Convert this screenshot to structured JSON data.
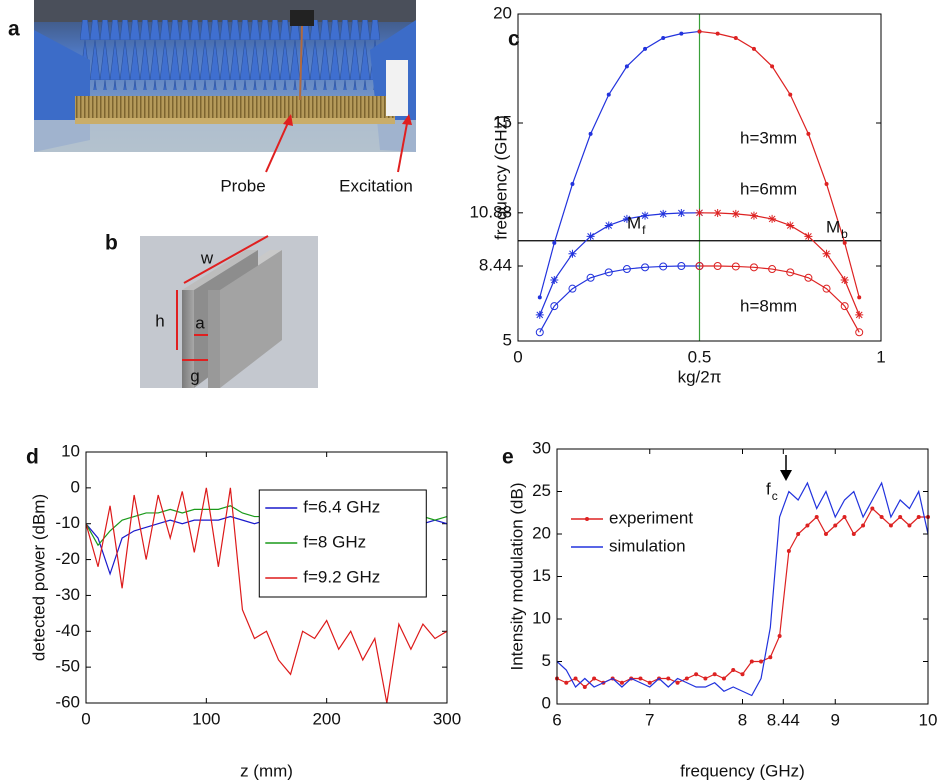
{
  "panels": {
    "a": {
      "label": "a",
      "callouts": [
        "Probe",
        "Excitation"
      ]
    },
    "b": {
      "label": "b",
      "dimensions": [
        "w",
        "h",
        "a",
        "g"
      ]
    }
  },
  "chart_data": [
    {
      "type": "line",
      "panel_label": "c",
      "xlabel": "kg/2π",
      "ylabel": "frequency (GHz)",
      "xlim": [
        0,
        1
      ],
      "ylim": [
        5,
        20
      ],
      "xticks": [
        0,
        0.5,
        1
      ],
      "yticks": [
        5,
        8.44,
        10.88,
        15,
        20
      ],
      "vlines": [
        {
          "value": 0.5,
          "color": "#3aa03a"
        }
      ],
      "hlines": [
        {
          "value": 9.6,
          "color": "#000000"
        }
      ],
      "annotations": [
        {
          "text": "h=3mm"
        },
        {
          "text": "h=6mm"
        },
        {
          "text": "h=8mm"
        },
        {
          "text": "M",
          "sub": "f"
        },
        {
          "text": "M",
          "sub": "b"
        }
      ],
      "series": [
        {
          "color": "#2233dd",
          "marker": "dot",
          "x": [
            0.06,
            0.1,
            0.15,
            0.2,
            0.25,
            0.3,
            0.35,
            0.4,
            0.45,
            0.5
          ],
          "values": [
            7.0,
            9.5,
            12.2,
            14.5,
            16.3,
            17.6,
            18.4,
            18.9,
            19.1,
            19.2
          ]
        },
        {
          "color": "#dd2222",
          "marker": "dot",
          "x": [
            0.5,
            0.55,
            0.6,
            0.65,
            0.7,
            0.75,
            0.8,
            0.85,
            0.9,
            0.94
          ],
          "values": [
            19.2,
            19.1,
            18.9,
            18.4,
            17.6,
            16.3,
            14.5,
            12.2,
            9.5,
            7.0
          ]
        },
        {
          "color": "#2233dd",
          "marker": "asterisk",
          "x": [
            0.06,
            0.1,
            0.15,
            0.2,
            0.25,
            0.3,
            0.35,
            0.4,
            0.45,
            0.5
          ],
          "values": [
            6.2,
            7.8,
            9.0,
            9.8,
            10.3,
            10.6,
            10.75,
            10.83,
            10.87,
            10.88
          ]
        },
        {
          "color": "#dd2222",
          "marker": "asterisk",
          "x": [
            0.5,
            0.55,
            0.6,
            0.65,
            0.7,
            0.75,
            0.8,
            0.85,
            0.9,
            0.94
          ],
          "values": [
            10.88,
            10.87,
            10.83,
            10.75,
            10.6,
            10.3,
            9.8,
            9.0,
            7.8,
            6.2
          ]
        },
        {
          "color": "#2233dd",
          "marker": "circle",
          "x": [
            0.06,
            0.1,
            0.15,
            0.2,
            0.25,
            0.3,
            0.35,
            0.4,
            0.45,
            0.5
          ],
          "values": [
            5.4,
            6.6,
            7.4,
            7.9,
            8.15,
            8.3,
            8.38,
            8.42,
            8.44,
            8.44
          ]
        },
        {
          "color": "#dd2222",
          "marker": "circle",
          "x": [
            0.5,
            0.55,
            0.6,
            0.65,
            0.7,
            0.75,
            0.8,
            0.85,
            0.9,
            0.94
          ],
          "values": [
            8.44,
            8.44,
            8.42,
            8.38,
            8.3,
            8.15,
            7.9,
            7.4,
            6.6,
            5.4
          ]
        }
      ]
    },
    {
      "type": "line",
      "panel_label": "d",
      "xlabel": "z (mm)",
      "ylabel": "detected power (dBm)",
      "xlim": [
        0,
        300
      ],
      "ylim": [
        -60,
        10
      ],
      "xticks": [
        0,
        100,
        200,
        300
      ],
      "yticks": [
        -60,
        -50,
        -40,
        -30,
        -20,
        -10,
        0,
        10
      ],
      "legend": "upper-right",
      "legend_frame": true,
      "x": [
        0,
        10,
        20,
        30,
        40,
        50,
        60,
        70,
        80,
        90,
        100,
        110,
        120,
        130,
        140,
        150,
        160,
        170,
        180,
        190,
        200,
        210,
        220,
        230,
        240,
        250,
        260,
        270,
        280,
        290,
        300
      ],
      "series": [
        {
          "name": "f=6.4 GHz",
          "color": "#1a1acc",
          "values": [
            -10,
            -14,
            -24,
            -14,
            -12,
            -11,
            -10,
            -9,
            -10,
            -9,
            -9,
            -9,
            -8,
            -9,
            -10,
            -9,
            -10,
            -9,
            -10,
            -9,
            -10,
            -9,
            -10,
            -9,
            -10,
            -9,
            -10,
            -9,
            -10,
            -9,
            -10
          ]
        },
        {
          "name": "f=8 GHz",
          "color": "#1a9a1a",
          "values": [
            -10,
            -16,
            -12,
            -9,
            -8,
            -7,
            -7,
            -6,
            -7,
            -6,
            -6,
            -6,
            -5,
            -7,
            -8,
            -8,
            -7,
            -9,
            -8,
            -9,
            -8,
            -9,
            -8,
            -9,
            -8,
            -9,
            -8,
            -9,
            -8,
            -9,
            -8
          ]
        },
        {
          "name": "f=9.2 GHz",
          "color": "#dd1a1a",
          "values": [
            -10,
            -22,
            -5,
            -28,
            -2,
            -20,
            -2,
            -14,
            -1,
            -18,
            0,
            -22,
            0,
            -34,
            -42,
            -40,
            -48,
            -52,
            -40,
            -42,
            -37,
            -45,
            -40,
            -48,
            -42,
            -60,
            -38,
            -45,
            -38,
            -42,
            -40
          ]
        }
      ]
    },
    {
      "type": "line",
      "panel_label": "e",
      "xlabel": "frequency (GHz)",
      "ylabel": "Intensity modulation (dB)",
      "xlim": [
        6,
        10
      ],
      "ylim": [
        0,
        30
      ],
      "xticks": [
        6,
        7,
        8,
        8.44,
        9,
        10
      ],
      "yticks": [
        0,
        5,
        10,
        15,
        20,
        25,
        30
      ],
      "legend": "center-left",
      "legend_frame": false,
      "annotations": [
        {
          "text": "f",
          "sub": "c"
        }
      ],
      "x": [
        6,
        6.1,
        6.2,
        6.3,
        6.4,
        6.5,
        6.6,
        6.7,
        6.8,
        6.9,
        7,
        7.1,
        7.2,
        7.3,
        7.4,
        7.5,
        7.6,
        7.7,
        7.8,
        7.9,
        8,
        8.1,
        8.2,
        8.3,
        8.4,
        8.5,
        8.6,
        8.7,
        8.8,
        8.9,
        9,
        9.1,
        9.2,
        9.3,
        9.4,
        9.5,
        9.6,
        9.7,
        9.8,
        9.9,
        10
      ],
      "series": [
        {
          "name": "experiment",
          "color": "#dd2222",
          "marker": "dot",
          "values": [
            3,
            2.5,
            3,
            2,
            3,
            2.5,
            3,
            2.5,
            3,
            3,
            2.5,
            3,
            3,
            2.5,
            3,
            3.5,
            3,
            3.5,
            3,
            4,
            3.5,
            5,
            5,
            5.5,
            8,
            18,
            20,
            21,
            22,
            20,
            21,
            22,
            20,
            21,
            23,
            22,
            21,
            22,
            21,
            22,
            22
          ]
        },
        {
          "name": "simulation",
          "color": "#2233dd",
          "values": [
            5,
            4,
            2,
            3,
            2,
            2.5,
            3,
            2,
            3,
            2.5,
            2,
            3,
            2,
            3,
            2.5,
            2,
            2,
            2.5,
            1.5,
            2,
            1.5,
            1,
            3,
            9,
            22,
            25,
            24,
            26,
            23,
            25,
            22,
            24,
            25,
            22,
            24,
            26,
            22,
            24,
            23,
            25,
            20
          ]
        }
      ]
    }
  ]
}
